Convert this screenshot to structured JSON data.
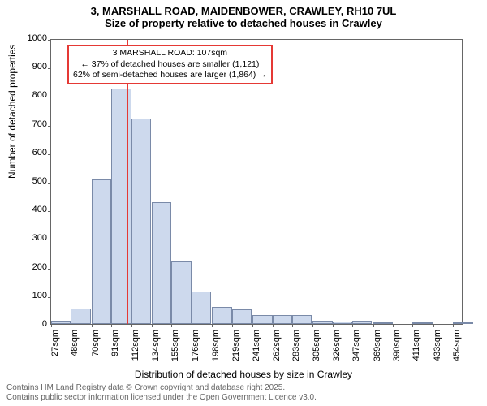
{
  "title": {
    "main": "3, MARSHALL ROAD, MAIDENBOWER, CRAWLEY, RH10 7UL",
    "sub": "Size of property relative to detached houses in Crawley"
  },
  "ylabel": "Number of detached properties",
  "xlabel": "Distribution of detached houses by size in Crawley",
  "footer": {
    "line1": "Contains HM Land Registry data © Crown copyright and database right 2025.",
    "line2": "Contains public sector information licensed under the Open Government Licence v3.0."
  },
  "chart": {
    "type": "histogram",
    "background_color": "#ffffff",
    "bar_fill": "#cdd9ed",
    "bar_border": "#7a8aa8",
    "axis_color": "#666666",
    "ref_line_color": "#e53935",
    "annotation_border": "#e53935",
    "ylim": [
      0,
      1000
    ],
    "yticks": [
      0,
      100,
      200,
      300,
      400,
      500,
      600,
      700,
      800,
      900,
      1000
    ],
    "xticks": [
      "27sqm",
      "48sqm",
      "70sqm",
      "91sqm",
      "112sqm",
      "134sqm",
      "155sqm",
      "176sqm",
      "198sqm",
      "219sqm",
      "241sqm",
      "262sqm",
      "283sqm",
      "305sqm",
      "326sqm",
      "347sqm",
      "369sqm",
      "390sqm",
      "411sqm",
      "433sqm",
      "454sqm"
    ],
    "bars": [
      {
        "x": 27,
        "y": 10
      },
      {
        "x": 48,
        "y": 55
      },
      {
        "x": 70,
        "y": 505
      },
      {
        "x": 91,
        "y": 825
      },
      {
        "x": 112,
        "y": 720
      },
      {
        "x": 134,
        "y": 425
      },
      {
        "x": 155,
        "y": 220
      },
      {
        "x": 176,
        "y": 115
      },
      {
        "x": 198,
        "y": 60
      },
      {
        "x": 219,
        "y": 50
      },
      {
        "x": 241,
        "y": 30
      },
      {
        "x": 262,
        "y": 30
      },
      {
        "x": 283,
        "y": 30
      },
      {
        "x": 305,
        "y": 10
      },
      {
        "x": 326,
        "y": 8
      },
      {
        "x": 347,
        "y": 10
      },
      {
        "x": 369,
        "y": 3
      },
      {
        "x": 390,
        "y": 0
      },
      {
        "x": 411,
        "y": 3
      },
      {
        "x": 433,
        "y": 0
      },
      {
        "x": 454,
        "y": 3
      }
    ],
    "x_min": 27,
    "x_max": 465,
    "bar_width_sqm": 21,
    "ref_line_x": 107,
    "annotation": {
      "line1": "3 MARSHALL ROAD: 107sqm",
      "line2": "← 37% of detached houses are smaller (1,121)",
      "line3": "62% of semi-detached houses are larger (1,864) →"
    },
    "title_fontsize": 13,
    "label_fontsize": 12,
    "tick_fontsize": 11,
    "annotation_fontsize": 10.5
  }
}
